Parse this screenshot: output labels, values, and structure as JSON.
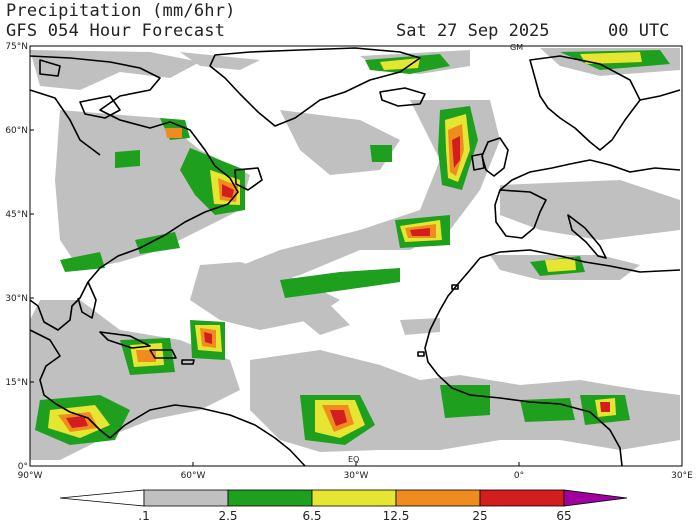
{
  "header": {
    "title": "Precipitation (mm/6hr)",
    "subtitle": "GFS 054 Hour Forecast",
    "date": "Sat 27 Sep 2025",
    "time": "00 UTC"
  },
  "axes": {
    "lat_labels": [
      "75°N",
      "60°N",
      "45°N",
      "30°N",
      "15°N",
      "0°"
    ],
    "lon_labels": [
      "90°W",
      "60°W",
      "30°W",
      "0°",
      "30°E"
    ]
  },
  "markers": {
    "eq": "EQ",
    "gm": "GM"
  },
  "colorbar": {
    "levels": [
      ".1",
      "2.5",
      "6.5",
      "12.5",
      "25",
      "65"
    ],
    "colors": [
      "#c0c0c0",
      "#1ea01e",
      "#e6e632",
      "#f08c1e",
      "#d21e1e",
      "#a000a0"
    ]
  },
  "colors": {
    "land_outline": "#000000",
    "light_precip": "#c0c0c0",
    "moderate_precip": "#1ea01e",
    "heavy_precip": "#e6e632",
    "very_heavy_precip": "#f08c1e",
    "extreme_precip": "#d21e1e"
  }
}
